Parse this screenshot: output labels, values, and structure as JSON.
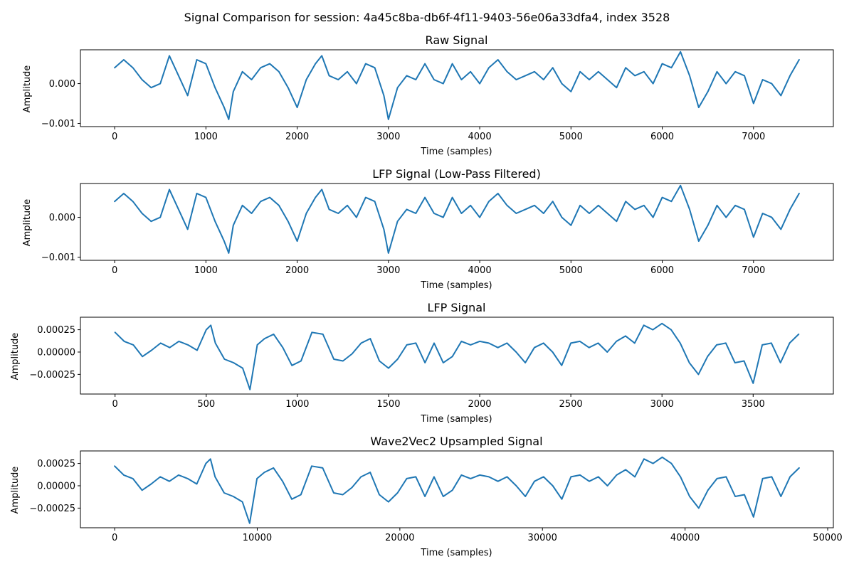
{
  "figure": {
    "title": "Signal Comparison for session: 4a45c8ba-db6f-4f11-9403-56e06a33dfa4, index 3528"
  },
  "colors": {
    "series": "#1f77b4",
    "axes": "#000000",
    "background": "#ffffff"
  },
  "chart_data": [
    {
      "type": "line",
      "title": "Raw Signal",
      "xlabel": "Time (samples)",
      "ylabel": "Amplitude",
      "xlim": [
        -375,
        7875
      ],
      "ylim": [
        -0.00108,
        0.00085
      ],
      "xticks": [
        0,
        1000,
        2000,
        3000,
        4000,
        5000,
        6000,
        7000
      ],
      "xtick_labels": [
        "0",
        "1000",
        "2000",
        "3000",
        "4000",
        "5000",
        "6000",
        "7000"
      ],
      "yticks": [
        -0.001,
        0.0
      ],
      "ytick_labels": [
        "−0.001",
        "0.000"
      ],
      "grid": false,
      "series": [
        {
          "x": [
            0,
            100,
            200,
            300,
            400,
            500,
            600,
            700,
            800,
            900,
            1000,
            1100,
            1200,
            1250,
            1300,
            1400,
            1500,
            1600,
            1700,
            1800,
            1900,
            2000,
            2100,
            2200,
            2270,
            2350,
            2450,
            2550,
            2650,
            2750,
            2850,
            2950,
            3000,
            3100,
            3200,
            3300,
            3400,
            3500,
            3600,
            3700,
            3800,
            3900,
            4000,
            4100,
            4200,
            4300,
            4400,
            4500,
            4600,
            4700,
            4800,
            4900,
            5000,
            5100,
            5200,
            5300,
            5400,
            5500,
            5600,
            5700,
            5800,
            5900,
            6000,
            6100,
            6200,
            6300,
            6400,
            6500,
            6600,
            6700,
            6800,
            6900,
            7000,
            7100,
            7200,
            7300,
            7400,
            7500
          ],
          "y": [
            0.0004,
            0.0006,
            0.0004,
            0.0001,
            -0.0001,
            0.0,
            0.0007,
            0.0002,
            -0.0003,
            0.0006,
            0.0005,
            -0.0001,
            -0.0006,
            -0.0009,
            -0.0002,
            0.0003,
            0.0001,
            0.0004,
            0.0005,
            0.0003,
            -0.0001,
            -0.0006,
            0.0001,
            0.0005,
            0.0007,
            0.0002,
            0.0001,
            0.0003,
            0.0,
            0.0005,
            0.0004,
            -0.0003,
            -0.0009,
            -0.0001,
            0.0002,
            0.0001,
            0.0005,
            0.0001,
            0.0,
            0.0005,
            0.0001,
            0.0003,
            0.0,
            0.0004,
            0.0006,
            0.0003,
            0.0001,
            0.0002,
            0.0003,
            0.0001,
            0.0004,
            0.0,
            -0.0002,
            0.0003,
            0.0001,
            0.0003,
            0.0001,
            -0.0001,
            0.0004,
            0.0002,
            0.0003,
            0.0,
            0.0005,
            0.0004,
            0.0008,
            0.0002,
            -0.0006,
            -0.0002,
            0.0003,
            0.0,
            0.0003,
            0.0002,
            -0.0005,
            0.0001,
            0.0,
            -0.0003,
            0.0002,
            0.0006
          ]
        }
      ]
    },
    {
      "type": "line",
      "title": "LFP Signal (Low-Pass Filtered)",
      "xlabel": "Time (samples)",
      "ylabel": "Amplitude",
      "xlim": [
        -375,
        7875
      ],
      "ylim": [
        -0.00108,
        0.00085
      ],
      "xticks": [
        0,
        1000,
        2000,
        3000,
        4000,
        5000,
        6000,
        7000
      ],
      "xtick_labels": [
        "0",
        "1000",
        "2000",
        "3000",
        "4000",
        "5000",
        "6000",
        "7000"
      ],
      "yticks": [
        -0.001,
        0.0
      ],
      "ytick_labels": [
        "−0.001",
        "0.000"
      ],
      "grid": false,
      "series": [
        {
          "x": [
            0,
            100,
            200,
            300,
            400,
            500,
            600,
            700,
            800,
            900,
            1000,
            1100,
            1200,
            1250,
            1300,
            1400,
            1500,
            1600,
            1700,
            1800,
            1900,
            2000,
            2100,
            2200,
            2270,
            2350,
            2450,
            2550,
            2650,
            2750,
            2850,
            2950,
            3000,
            3100,
            3200,
            3300,
            3400,
            3500,
            3600,
            3700,
            3800,
            3900,
            4000,
            4100,
            4200,
            4300,
            4400,
            4500,
            4600,
            4700,
            4800,
            4900,
            5000,
            5100,
            5200,
            5300,
            5400,
            5500,
            5600,
            5700,
            5800,
            5900,
            6000,
            6100,
            6200,
            6300,
            6400,
            6500,
            6600,
            6700,
            6800,
            6900,
            7000,
            7100,
            7200,
            7300,
            7400,
            7500
          ],
          "y": [
            0.0004,
            0.0006,
            0.0004,
            0.0001,
            -0.0001,
            0.0,
            0.0007,
            0.0002,
            -0.0003,
            0.0006,
            0.0005,
            -0.0001,
            -0.0006,
            -0.0009,
            -0.0002,
            0.0003,
            0.0001,
            0.0004,
            0.0005,
            0.0003,
            -0.0001,
            -0.0006,
            0.0001,
            0.0005,
            0.0007,
            0.0002,
            0.0001,
            0.0003,
            0.0,
            0.0005,
            0.0004,
            -0.0003,
            -0.0009,
            -0.0001,
            0.0002,
            0.0001,
            0.0005,
            0.0001,
            0.0,
            0.0005,
            0.0001,
            0.0003,
            0.0,
            0.0004,
            0.0006,
            0.0003,
            0.0001,
            0.0002,
            0.0003,
            0.0001,
            0.0004,
            0.0,
            -0.0002,
            0.0003,
            0.0001,
            0.0003,
            0.0001,
            -0.0001,
            0.0004,
            0.0002,
            0.0003,
            0.0,
            0.0005,
            0.0004,
            0.0008,
            0.0002,
            -0.0006,
            -0.0002,
            0.0003,
            0.0,
            0.0003,
            0.0002,
            -0.0005,
            0.0001,
            0.0,
            -0.0003,
            0.0002,
            0.0006
          ]
        }
      ]
    },
    {
      "type": "line",
      "title": "LFP Signal",
      "xlabel": "Time (samples)",
      "ylabel": "Amplitude",
      "xlim": [
        -190,
        3940
      ],
      "ylim": [
        -0.00047,
        0.00039
      ],
      "xticks": [
        0,
        500,
        1000,
        1500,
        2000,
        2500,
        3000,
        3500
      ],
      "xtick_labels": [
        "0",
        "500",
        "1000",
        "1500",
        "2000",
        "2500",
        "3000",
        "3500"
      ],
      "yticks": [
        -0.00025,
        0.0,
        0.00025
      ],
      "ytick_labels": [
        "−0.00025",
        "0.00000",
        "0.00025"
      ],
      "grid": false,
      "series": [
        {
          "x": [
            0,
            50,
            100,
            150,
            200,
            250,
            300,
            350,
            400,
            450,
            500,
            525,
            550,
            600,
            650,
            700,
            740,
            780,
            820,
            870,
            920,
            970,
            1020,
            1080,
            1140,
            1200,
            1250,
            1300,
            1350,
            1400,
            1450,
            1500,
            1550,
            1600,
            1650,
            1700,
            1750,
            1800,
            1850,
            1900,
            1950,
            2000,
            2050,
            2100,
            2150,
            2200,
            2250,
            2300,
            2350,
            2400,
            2450,
            2500,
            2550,
            2600,
            2650,
            2700,
            2750,
            2800,
            2850,
            2900,
            2950,
            3000,
            3050,
            3100,
            3150,
            3200,
            3250,
            3300,
            3350,
            3400,
            3450,
            3500,
            3550,
            3600,
            3650,
            3700,
            3750
          ],
          "y": [
            0.00022,
            0.00012,
            8e-05,
            -5e-05,
            2e-05,
            0.0001,
            5e-05,
            0.00012,
            8e-05,
            2e-05,
            0.00025,
            0.0003,
            0.0001,
            -8e-05,
            -0.00012,
            -0.00018,
            -0.00042,
            8e-05,
            0.00015,
            0.0002,
            5e-05,
            -0.00015,
            -0.0001,
            0.00022,
            0.0002,
            -8e-05,
            -0.0001,
            -2e-05,
            0.0001,
            0.00015,
            -0.0001,
            -0.00018,
            -8e-05,
            8e-05,
            0.0001,
            -0.00012,
            0.0001,
            -0.00012,
            -5e-05,
            0.00012,
            8e-05,
            0.00012,
            0.0001,
            5e-05,
            0.0001,
            0.0,
            -0.00012,
            5e-05,
            0.0001,
            0.0,
            -0.00015,
            0.0001,
            0.00012,
            5e-05,
            0.0001,
            0.0,
            0.00012,
            0.00018,
            0.0001,
            0.0003,
            0.00025,
            0.00032,
            0.00025,
            0.0001,
            -0.00012,
            -0.00025,
            -5e-05,
            8e-05,
            0.0001,
            -0.00012,
            -0.0001,
            -0.00035,
            8e-05,
            0.0001,
            -0.00012,
            0.0001,
            0.0002
          ]
        }
      ]
    },
    {
      "type": "line",
      "title": "Wave2Vec2 Upsampled Signal",
      "xlabel": "Time (samples)",
      "ylabel": "Amplitude",
      "xlim": [
        -2400,
        50400
      ],
      "ylim": [
        -0.00047,
        0.00039
      ],
      "xticks": [
        0,
        10000,
        20000,
        30000,
        40000,
        50000
      ],
      "xtick_labels": [
        "0",
        "10000",
        "20000",
        "30000",
        "40000",
        "50000"
      ],
      "yticks": [
        -0.00025,
        0.0,
        0.00025
      ],
      "ytick_labels": [
        "−0.00025",
        "0.00000",
        "0.00025"
      ],
      "grid": false,
      "series": [
        {
          "x": [
            0,
            640,
            1280,
            1920,
            2560,
            3200,
            3840,
            4480,
            5120,
            5760,
            6400,
            6720,
            7040,
            7680,
            8320,
            8960,
            9470,
            9980,
            10500,
            11140,
            11780,
            12420,
            13060,
            13820,
            14590,
            15360,
            16000,
            16640,
            17280,
            17920,
            18560,
            19200,
            19840,
            20480,
            21120,
            21760,
            22400,
            23040,
            23680,
            24320,
            24960,
            25600,
            26240,
            26880,
            27520,
            28160,
            28800,
            29440,
            30080,
            30720,
            31360,
            32000,
            32640,
            33280,
            33920,
            34560,
            35200,
            35840,
            36480,
            37120,
            37760,
            38400,
            39040,
            39680,
            40320,
            40960,
            41600,
            42240,
            42880,
            43520,
            44160,
            44800,
            45440,
            46080,
            46720,
            47360,
            48000
          ],
          "y": [
            0.00022,
            0.00012,
            8e-05,
            -5e-05,
            2e-05,
            0.0001,
            5e-05,
            0.00012,
            8e-05,
            2e-05,
            0.00025,
            0.0003,
            0.0001,
            -8e-05,
            -0.00012,
            -0.00018,
            -0.00042,
            8e-05,
            0.00015,
            0.0002,
            5e-05,
            -0.00015,
            -0.0001,
            0.00022,
            0.0002,
            -8e-05,
            -0.0001,
            -2e-05,
            0.0001,
            0.00015,
            -0.0001,
            -0.00018,
            -8e-05,
            8e-05,
            0.0001,
            -0.00012,
            0.0001,
            -0.00012,
            -5e-05,
            0.00012,
            8e-05,
            0.00012,
            0.0001,
            5e-05,
            0.0001,
            0.0,
            -0.00012,
            5e-05,
            0.0001,
            0.0,
            -0.00015,
            0.0001,
            0.00012,
            5e-05,
            0.0001,
            0.0,
            0.00012,
            0.00018,
            0.0001,
            0.0003,
            0.00025,
            0.00032,
            0.00025,
            0.0001,
            -0.00012,
            -0.00025,
            -5e-05,
            8e-05,
            0.0001,
            -0.00012,
            -0.0001,
            -0.00035,
            8e-05,
            0.0001,
            -0.00012,
            0.0001,
            0.0002
          ]
        }
      ]
    }
  ]
}
